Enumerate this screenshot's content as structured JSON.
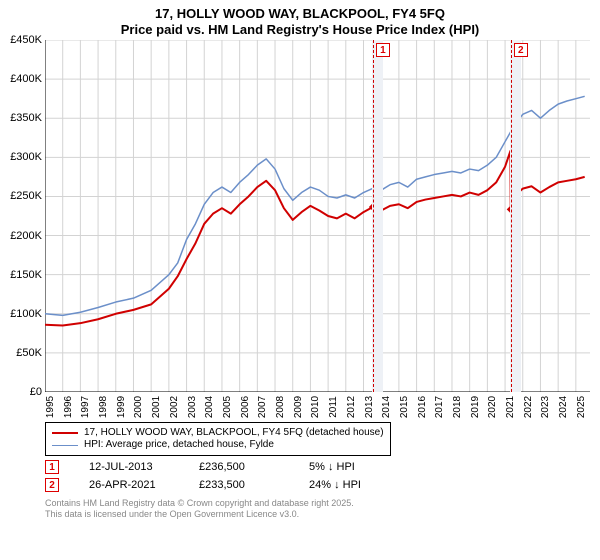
{
  "title": {
    "line1": "17, HOLLY WOOD WAY, BLACKPOOL, FY4 5FQ",
    "line2": "Price paid vs. HM Land Registry's House Price Index (HPI)",
    "fontsize": 13,
    "color": "#000000"
  },
  "chart": {
    "type": "line",
    "background": "#ffffff",
    "grid_color": "#d3d3d3",
    "axis_color": "#000000",
    "ylim": [
      0,
      450000
    ],
    "ytick_step": 50000,
    "ytick_labels": [
      "£0",
      "£50K",
      "£100K",
      "£150K",
      "£200K",
      "£250K",
      "£300K",
      "£350K",
      "£400K",
      "£450K"
    ],
    "xlim": [
      1995,
      2025.8
    ],
    "xticks": [
      1995,
      1996,
      1997,
      1998,
      1999,
      2000,
      2001,
      2002,
      2003,
      2004,
      2005,
      2006,
      2007,
      2008,
      2009,
      2010,
      2011,
      2012,
      2013,
      2014,
      2015,
      2016,
      2017,
      2018,
      2019,
      2020,
      2021,
      2022,
      2023,
      2024,
      2025
    ],
    "xlabel_fontsize": 10,
    "ylabel_fontsize": 11,
    "shaded_bands": [
      {
        "from": 2013.5,
        "to": 2014.1,
        "color": "#eef1f6"
      },
      {
        "from": 2021.3,
        "to": 2021.9,
        "color": "#eef1f6"
      }
    ],
    "vmarkers": [
      {
        "x": 2013.53,
        "label": "1",
        "color": "#d00000"
      },
      {
        "x": 2021.32,
        "label": "2",
        "color": "#d00000"
      }
    ],
    "series": [
      {
        "name": "HPI: Average price, detached house, Fylde",
        "color": "#6b8fc9",
        "line_width": 1.5,
        "points": [
          [
            1995,
            100000
          ],
          [
            1996,
            98000
          ],
          [
            1997,
            102000
          ],
          [
            1998,
            108000
          ],
          [
            1999,
            115000
          ],
          [
            2000,
            120000
          ],
          [
            2001,
            130000
          ],
          [
            2002,
            150000
          ],
          [
            2002.5,
            165000
          ],
          [
            2003,
            195000
          ],
          [
            2003.5,
            215000
          ],
          [
            2004,
            240000
          ],
          [
            2004.5,
            255000
          ],
          [
            2005,
            262000
          ],
          [
            2005.5,
            255000
          ],
          [
            2006,
            268000
          ],
          [
            2006.5,
            278000
          ],
          [
            2007,
            290000
          ],
          [
            2007.5,
            298000
          ],
          [
            2008,
            285000
          ],
          [
            2008.5,
            260000
          ],
          [
            2009,
            245000
          ],
          [
            2009.5,
            255000
          ],
          [
            2010,
            262000
          ],
          [
            2010.5,
            258000
          ],
          [
            2011,
            250000
          ],
          [
            2011.5,
            248000
          ],
          [
            2012,
            252000
          ],
          [
            2012.5,
            248000
          ],
          [
            2013,
            255000
          ],
          [
            2013.5,
            260000
          ],
          [
            2014,
            258000
          ],
          [
            2014.5,
            265000
          ],
          [
            2015,
            268000
          ],
          [
            2015.5,
            262000
          ],
          [
            2016,
            272000
          ],
          [
            2016.5,
            275000
          ],
          [
            2017,
            278000
          ],
          [
            2017.5,
            280000
          ],
          [
            2018,
            282000
          ],
          [
            2018.5,
            280000
          ],
          [
            2019,
            285000
          ],
          [
            2019.5,
            283000
          ],
          [
            2020,
            290000
          ],
          [
            2020.5,
            300000
          ],
          [
            2021,
            320000
          ],
          [
            2021.5,
            340000
          ],
          [
            2022,
            355000
          ],
          [
            2022.5,
            360000
          ],
          [
            2023,
            350000
          ],
          [
            2023.5,
            360000
          ],
          [
            2024,
            368000
          ],
          [
            2024.5,
            372000
          ],
          [
            2025,
            375000
          ],
          [
            2025.5,
            378000
          ]
        ]
      },
      {
        "name": "17, HOLLY WOOD WAY, BLACKPOOL, FY4 5FQ (detached house)",
        "color": "#d00000",
        "line_width": 2,
        "points": [
          [
            1995,
            86000
          ],
          [
            1996,
            85000
          ],
          [
            1997,
            88000
          ],
          [
            1998,
            93000
          ],
          [
            1999,
            100000
          ],
          [
            2000,
            105000
          ],
          [
            2001,
            112000
          ],
          [
            2002,
            132000
          ],
          [
            2002.5,
            148000
          ],
          [
            2003,
            170000
          ],
          [
            2003.5,
            190000
          ],
          [
            2004,
            215000
          ],
          [
            2004.5,
            228000
          ],
          [
            2005,
            235000
          ],
          [
            2005.5,
            228000
          ],
          [
            2006,
            240000
          ],
          [
            2006.5,
            250000
          ],
          [
            2007,
            262000
          ],
          [
            2007.5,
            270000
          ],
          [
            2008,
            258000
          ],
          [
            2008.5,
            235000
          ],
          [
            2009,
            220000
          ],
          [
            2009.5,
            230000
          ],
          [
            2010,
            238000
          ],
          [
            2010.5,
            232000
          ],
          [
            2011,
            225000
          ],
          [
            2011.5,
            222000
          ],
          [
            2012,
            228000
          ],
          [
            2012.5,
            222000
          ],
          [
            2013,
            230000
          ],
          [
            2013.53,
            236500
          ],
          [
            2014,
            232000
          ],
          [
            2014.5,
            238000
          ],
          [
            2015,
            240000
          ],
          [
            2015.5,
            235000
          ],
          [
            2016,
            243000
          ],
          [
            2016.5,
            246000
          ],
          [
            2017,
            248000
          ],
          [
            2017.5,
            250000
          ],
          [
            2018,
            252000
          ],
          [
            2018.5,
            250000
          ],
          [
            2019,
            255000
          ],
          [
            2019.5,
            252000
          ],
          [
            2020,
            258000
          ],
          [
            2020.5,
            268000
          ],
          [
            2021,
            288000
          ],
          [
            2021.3,
            308000
          ],
          [
            2021.32,
            233500
          ],
          [
            2021.5,
            250000
          ],
          [
            2022,
            260000
          ],
          [
            2022.5,
            263000
          ],
          [
            2023,
            255000
          ],
          [
            2023.5,
            262000
          ],
          [
            2024,
            268000
          ],
          [
            2024.5,
            270000
          ],
          [
            2025,
            272000
          ],
          [
            2025.5,
            275000
          ]
        ],
        "markers": [
          {
            "x": 2013.53,
            "y": 236500,
            "shape": "diamond",
            "size": 8
          },
          {
            "x": 2021.32,
            "y": 233500,
            "shape": "diamond",
            "size": 8
          }
        ]
      }
    ]
  },
  "legend": {
    "border_color": "#000000",
    "fontsize": 10,
    "items": [
      {
        "color": "#d00000",
        "width": 2,
        "label": "17, HOLLY WOOD WAY, BLACKPOOL, FY4 5FQ (detached house)"
      },
      {
        "color": "#6b8fc9",
        "width": 1.5,
        "label": "HPI: Average price, detached house, Fylde"
      }
    ]
  },
  "events": [
    {
      "badge": "1",
      "date": "12-JUL-2013",
      "price": "£236,500",
      "delta": "5% ↓ HPI"
    },
    {
      "badge": "2",
      "date": "26-APR-2021",
      "price": "£233,500",
      "delta": "24% ↓ HPI"
    }
  ],
  "footer": {
    "line1": "Contains HM Land Registry data © Crown copyright and database right 2025.",
    "line2": "This data is licensed under the Open Government Licence v3.0.",
    "color": "#888888",
    "fontsize": 9
  }
}
